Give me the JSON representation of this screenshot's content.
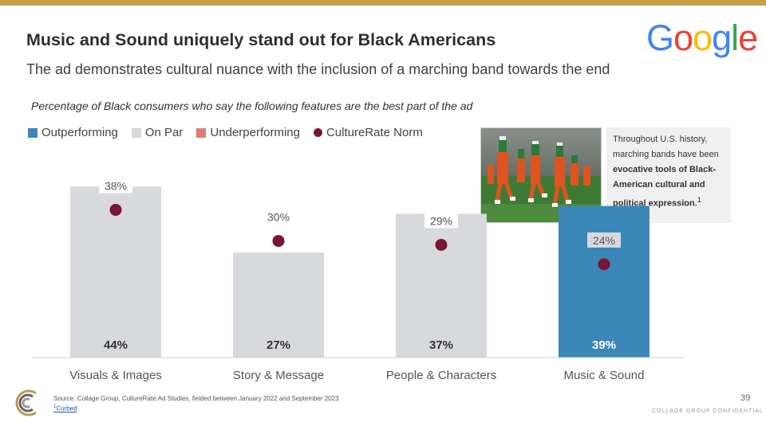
{
  "header": {
    "title": "Music and Sound uniquely stand out for Black Americans",
    "subtitle": "The ad demonstrates cultural nuance with the inclusion of a marching band towards the end",
    "question": "Percentage of Black consumers who say the following features are the best part of the ad"
  },
  "logo": {
    "letters": [
      "G",
      "o",
      "o",
      "g",
      "l",
      "e"
    ],
    "colors": [
      "#4285F4",
      "#EA4335",
      "#FBBC05",
      "#4285F4",
      "#34A853",
      "#EA4335"
    ]
  },
  "legend": [
    {
      "label": "Outperforming",
      "color": "#3a87b8",
      "shape": "square"
    },
    {
      "label": "On Par",
      "color": "#d8d9dc",
      "shape": "square"
    },
    {
      "label": "Underperforming",
      "color": "#e07b7b",
      "shape": "square"
    },
    {
      "label": "CultureRate Norm",
      "color": "#7a1535",
      "shape": "circle"
    }
  ],
  "callout": {
    "text_before": "Throughout U.S. history, marching bands have been ",
    "text_bold": "evocative tools of Black-American cultural and political expression.",
    "footnote_mark": "1"
  },
  "chart_data": {
    "type": "bar",
    "categories": [
      "Visuals & Images",
      "Story & Message",
      "People & Characters",
      "Music & Sound"
    ],
    "values": [
      44,
      27,
      37,
      39
    ],
    "value_labels": [
      "44%",
      "27%",
      "37%",
      "39%"
    ],
    "norm_values": [
      38,
      30,
      29,
      24
    ],
    "norm_labels": [
      "38%",
      "30%",
      "29%",
      "24%"
    ],
    "status": [
      "On Par",
      "On Par",
      "On Par",
      "Outperforming"
    ],
    "bar_colors": [
      "#d8d9dc",
      "#d8d9dc",
      "#d8d9dc",
      "#3a87b8"
    ],
    "norm_color": "#7a1535",
    "ylim": [
      0,
      50
    ],
    "xlabel": "",
    "ylabel": ""
  },
  "footer": {
    "source": "Source: Collage Group, CultureRate:Ad Studies, fielded between January 2022 and September 2023",
    "ref_mark": "1",
    "ref_label": "Curbed",
    "page": "39",
    "confidential": "COLLAGE GROUP CONFIDENTIAL"
  }
}
